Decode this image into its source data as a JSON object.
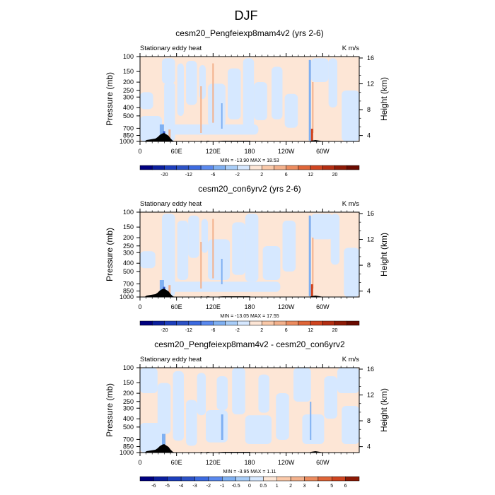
{
  "page": {
    "title": "DJF"
  },
  "colors": {
    "negative_light": "#d6e8ff",
    "positive_light": "#fde6d6",
    "negative_mid": "#7fb0f2",
    "positive_mid": "#f3b18c",
    "negative_dark": "#2c52c6",
    "positive_dark": "#cf4520",
    "terrain": "#000000"
  },
  "chart_data": [
    {
      "type": "heatmap",
      "title": "cesm20_Pengfeiexp8mam4v2 (yrs 2-6)",
      "left_label": "Stationary eddy heat",
      "units": "K m/s",
      "ylabel": "Pressure (mb)",
      "ylabel_right": "Height (km)",
      "x_ticks": [
        "0",
        "60E",
        "120E",
        "180",
        "120W",
        "60W"
      ],
      "y_ticks": [
        "100",
        "150",
        "200",
        "250",
        "300",
        "400",
        "500",
        "700",
        "850",
        "1000"
      ],
      "y_ticks_right": [
        "16",
        "12",
        "8",
        "4"
      ],
      "minmax": "MIN = -13.90  MAX = 18.53",
      "min": -13.9,
      "max": 18.53,
      "colorbar": {
        "labels": [
          "-20",
          "-12",
          "-6",
          "-2",
          "2",
          "6",
          "12",
          "20"
        ],
        "colors": [
          "#00007f",
          "#0b1f9e",
          "#1d3fbd",
          "#2c52c6",
          "#3c6ae0",
          "#5a89ee",
          "#7fb0f2",
          "#a8cdf8",
          "#d6e8ff",
          "#fde6d6",
          "#fac9a9",
          "#f3b18c",
          "#ec8c5f",
          "#df6538",
          "#cf4520",
          "#b32e12",
          "#8e1a06",
          "#6a0b00"
        ]
      }
    },
    {
      "type": "heatmap",
      "title": "cesm20_con6yrv2 (yrs 2-6)",
      "left_label": "Stationary eddy heat",
      "units": "K m/s",
      "ylabel": "Pressure (mb)",
      "ylabel_right": "Height (km)",
      "x_ticks": [
        "0",
        "60E",
        "120E",
        "180",
        "120W",
        "60W"
      ],
      "y_ticks": [
        "100",
        "150",
        "200",
        "250",
        "300",
        "400",
        "500",
        "700",
        "850",
        "1000"
      ],
      "y_ticks_right": [
        "16",
        "12",
        "8",
        "4"
      ],
      "minmax": "MIN = -13.05  MAX = 17.55",
      "min": -13.05,
      "max": 17.55,
      "colorbar": {
        "labels": [
          "-20",
          "-12",
          "-6",
          "-2",
          "2",
          "6",
          "12",
          "20"
        ],
        "colors": [
          "#00007f",
          "#0b1f9e",
          "#1d3fbd",
          "#2c52c6",
          "#3c6ae0",
          "#5a89ee",
          "#7fb0f2",
          "#a8cdf8",
          "#d6e8ff",
          "#fde6d6",
          "#fac9a9",
          "#f3b18c",
          "#ec8c5f",
          "#df6538",
          "#cf4520",
          "#b32e12",
          "#8e1a06",
          "#6a0b00"
        ]
      }
    },
    {
      "type": "heatmap",
      "title": "cesm20_Pengfeiexp8mam4v2 - cesm20_con6yrv2",
      "left_label": "Stationary eddy heat",
      "units": "K m/s",
      "ylabel": "Pressure (mb)",
      "ylabel_right": "Height (km)",
      "x_ticks": [
        "0",
        "60E",
        "120E",
        "180",
        "120W",
        "60W"
      ],
      "y_ticks": [
        "100",
        "150",
        "200",
        "250",
        "300",
        "400",
        "500",
        "700",
        "850",
        "1000"
      ],
      "y_ticks_right": [
        "16",
        "12",
        "8",
        "4"
      ],
      "minmax": "MIN = -3.95  MAX =  1.11",
      "min": -3.95,
      "max": 1.11,
      "colorbar": {
        "labels": [
          "-6",
          "-5",
          "-4",
          "-3",
          "-2",
          "-1",
          "-0.5",
          "0",
          "0.5",
          "1",
          "2",
          "3",
          "4",
          "5",
          "6"
        ],
        "colors": [
          "#00007f",
          "#0b1f9e",
          "#1d3fbd",
          "#2c52c6",
          "#3c6ae0",
          "#5a89ee",
          "#7fb0f2",
          "#a8cdf8",
          "#d6e8ff",
          "#fde6d6",
          "#fac9a9",
          "#f3b18c",
          "#ec8c5f",
          "#df6538",
          "#cf4520",
          "#8e1a06"
        ]
      }
    }
  ]
}
